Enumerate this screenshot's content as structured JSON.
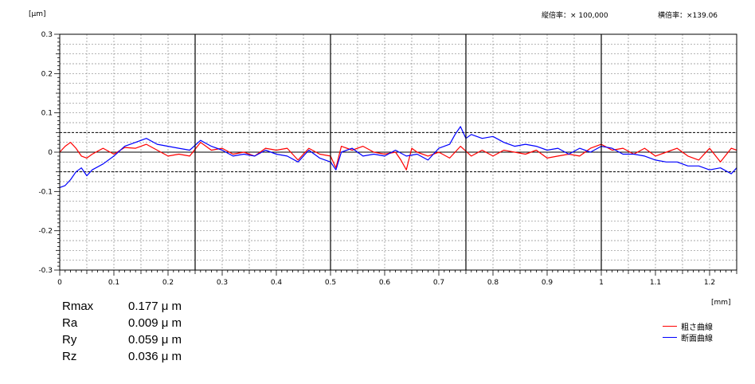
{
  "header": {
    "v_mag_label": "縦倍率：× 100,000",
    "h_mag_label": "横倍率：×139.06"
  },
  "stats": [
    {
      "name": "Rmax",
      "value": "0.177 μ m"
    },
    {
      "name": "Ra",
      "value": "0.009 μ m"
    },
    {
      "name": "Ry",
      "value": "0.059 μ m"
    },
    {
      "name": "Rz",
      "value": "0.036 μ m"
    }
  ],
  "chart_data": {
    "type": "line",
    "ylabel": "[μm]",
    "xlabel": "[mm]",
    "xlim": [
      0,
      1.25
    ],
    "ylim": [
      -0.3,
      0.3
    ],
    "x_ticks": [
      "0",
      "0.1",
      "0.2",
      "0.3",
      "0.4",
      "0.5",
      "0.6",
      "0.7",
      "0.8",
      "0.9",
      "1",
      "1.1",
      "1.2"
    ],
    "y_ticks": [
      "0.3",
      "0.2",
      "0.1",
      "0",
      "-0.1",
      "-0.2",
      "-0.3"
    ],
    "grid": true,
    "legend_position": "bottom-right",
    "series": [
      {
        "name": "粗さ曲線",
        "color": "#ff0000",
        "x": [
          0,
          0.01,
          0.02,
          0.03,
          0.04,
          0.05,
          0.06,
          0.08,
          0.1,
          0.12,
          0.14,
          0.16,
          0.18,
          0.2,
          0.22,
          0.24,
          0.26,
          0.28,
          0.3,
          0.32,
          0.34,
          0.36,
          0.38,
          0.4,
          0.42,
          0.44,
          0.46,
          0.48,
          0.5,
          0.51,
          0.52,
          0.54,
          0.56,
          0.58,
          0.6,
          0.62,
          0.63,
          0.64,
          0.65,
          0.66,
          0.68,
          0.7,
          0.72,
          0.74,
          0.76,
          0.78,
          0.8,
          0.82,
          0.84,
          0.86,
          0.88,
          0.9,
          0.92,
          0.94,
          0.96,
          0.98,
          1.0,
          1.02,
          1.04,
          1.06,
          1.08,
          1.1,
          1.12,
          1.14,
          1.16,
          1.18,
          1.2,
          1.22,
          1.24,
          1.25
        ],
        "y": [
          0.0,
          0.015,
          0.025,
          0.01,
          -0.01,
          -0.015,
          -0.005,
          0.01,
          -0.005,
          0.012,
          0.01,
          0.02,
          0.005,
          -0.01,
          -0.005,
          -0.01,
          0.025,
          0.005,
          0.01,
          -0.005,
          0.0,
          -0.01,
          0.01,
          0.005,
          0.01,
          -0.02,
          0.01,
          -0.005,
          -0.01,
          -0.04,
          0.015,
          0.005,
          0.015,
          0.0,
          -0.005,
          0.0,
          -0.02,
          -0.045,
          0.01,
          0.0,
          -0.01,
          0.0,
          -0.015,
          0.015,
          -0.01,
          0.005,
          -0.01,
          0.005,
          0.0,
          -0.005,
          0.005,
          -0.015,
          -0.01,
          -0.005,
          -0.01,
          0.01,
          0.02,
          0.005,
          0.01,
          -0.005,
          0.01,
          -0.01,
          0.0,
          0.01,
          -0.01,
          -0.02,
          0.01,
          -0.025,
          0.01,
          0.005
        ]
      },
      {
        "name": "断面曲線",
        "color": "#0000ff",
        "x": [
          0,
          0.01,
          0.02,
          0.03,
          0.04,
          0.05,
          0.06,
          0.08,
          0.1,
          0.12,
          0.14,
          0.16,
          0.18,
          0.2,
          0.22,
          0.24,
          0.26,
          0.28,
          0.3,
          0.32,
          0.34,
          0.36,
          0.38,
          0.4,
          0.42,
          0.44,
          0.46,
          0.48,
          0.5,
          0.51,
          0.52,
          0.54,
          0.56,
          0.58,
          0.6,
          0.62,
          0.64,
          0.66,
          0.68,
          0.7,
          0.72,
          0.73,
          0.74,
          0.75,
          0.76,
          0.78,
          0.8,
          0.82,
          0.84,
          0.86,
          0.88,
          0.9,
          0.92,
          0.94,
          0.96,
          0.98,
          1.0,
          1.02,
          1.04,
          1.06,
          1.08,
          1.1,
          1.12,
          1.14,
          1.16,
          1.18,
          1.2,
          1.22,
          1.24,
          1.25
        ],
        "y": [
          -0.09,
          -0.085,
          -0.07,
          -0.05,
          -0.04,
          -0.06,
          -0.045,
          -0.03,
          -0.01,
          0.015,
          0.025,
          0.035,
          0.02,
          0.015,
          0.01,
          0.005,
          0.03,
          0.015,
          0.005,
          -0.01,
          -0.005,
          -0.01,
          0.005,
          -0.005,
          -0.01,
          -0.025,
          0.005,
          -0.015,
          -0.025,
          -0.045,
          0.0,
          0.01,
          -0.01,
          -0.005,
          -0.01,
          0.005,
          -0.01,
          -0.005,
          -0.02,
          0.01,
          0.02,
          0.045,
          0.065,
          0.035,
          0.045,
          0.035,
          0.04,
          0.025,
          0.015,
          0.02,
          0.015,
          0.005,
          0.01,
          -0.005,
          0.01,
          0.0,
          0.015,
          0.01,
          -0.005,
          -0.005,
          -0.01,
          -0.02,
          -0.025,
          -0.025,
          -0.035,
          -0.035,
          -0.045,
          -0.04,
          -0.055,
          -0.04
        ]
      }
    ]
  }
}
